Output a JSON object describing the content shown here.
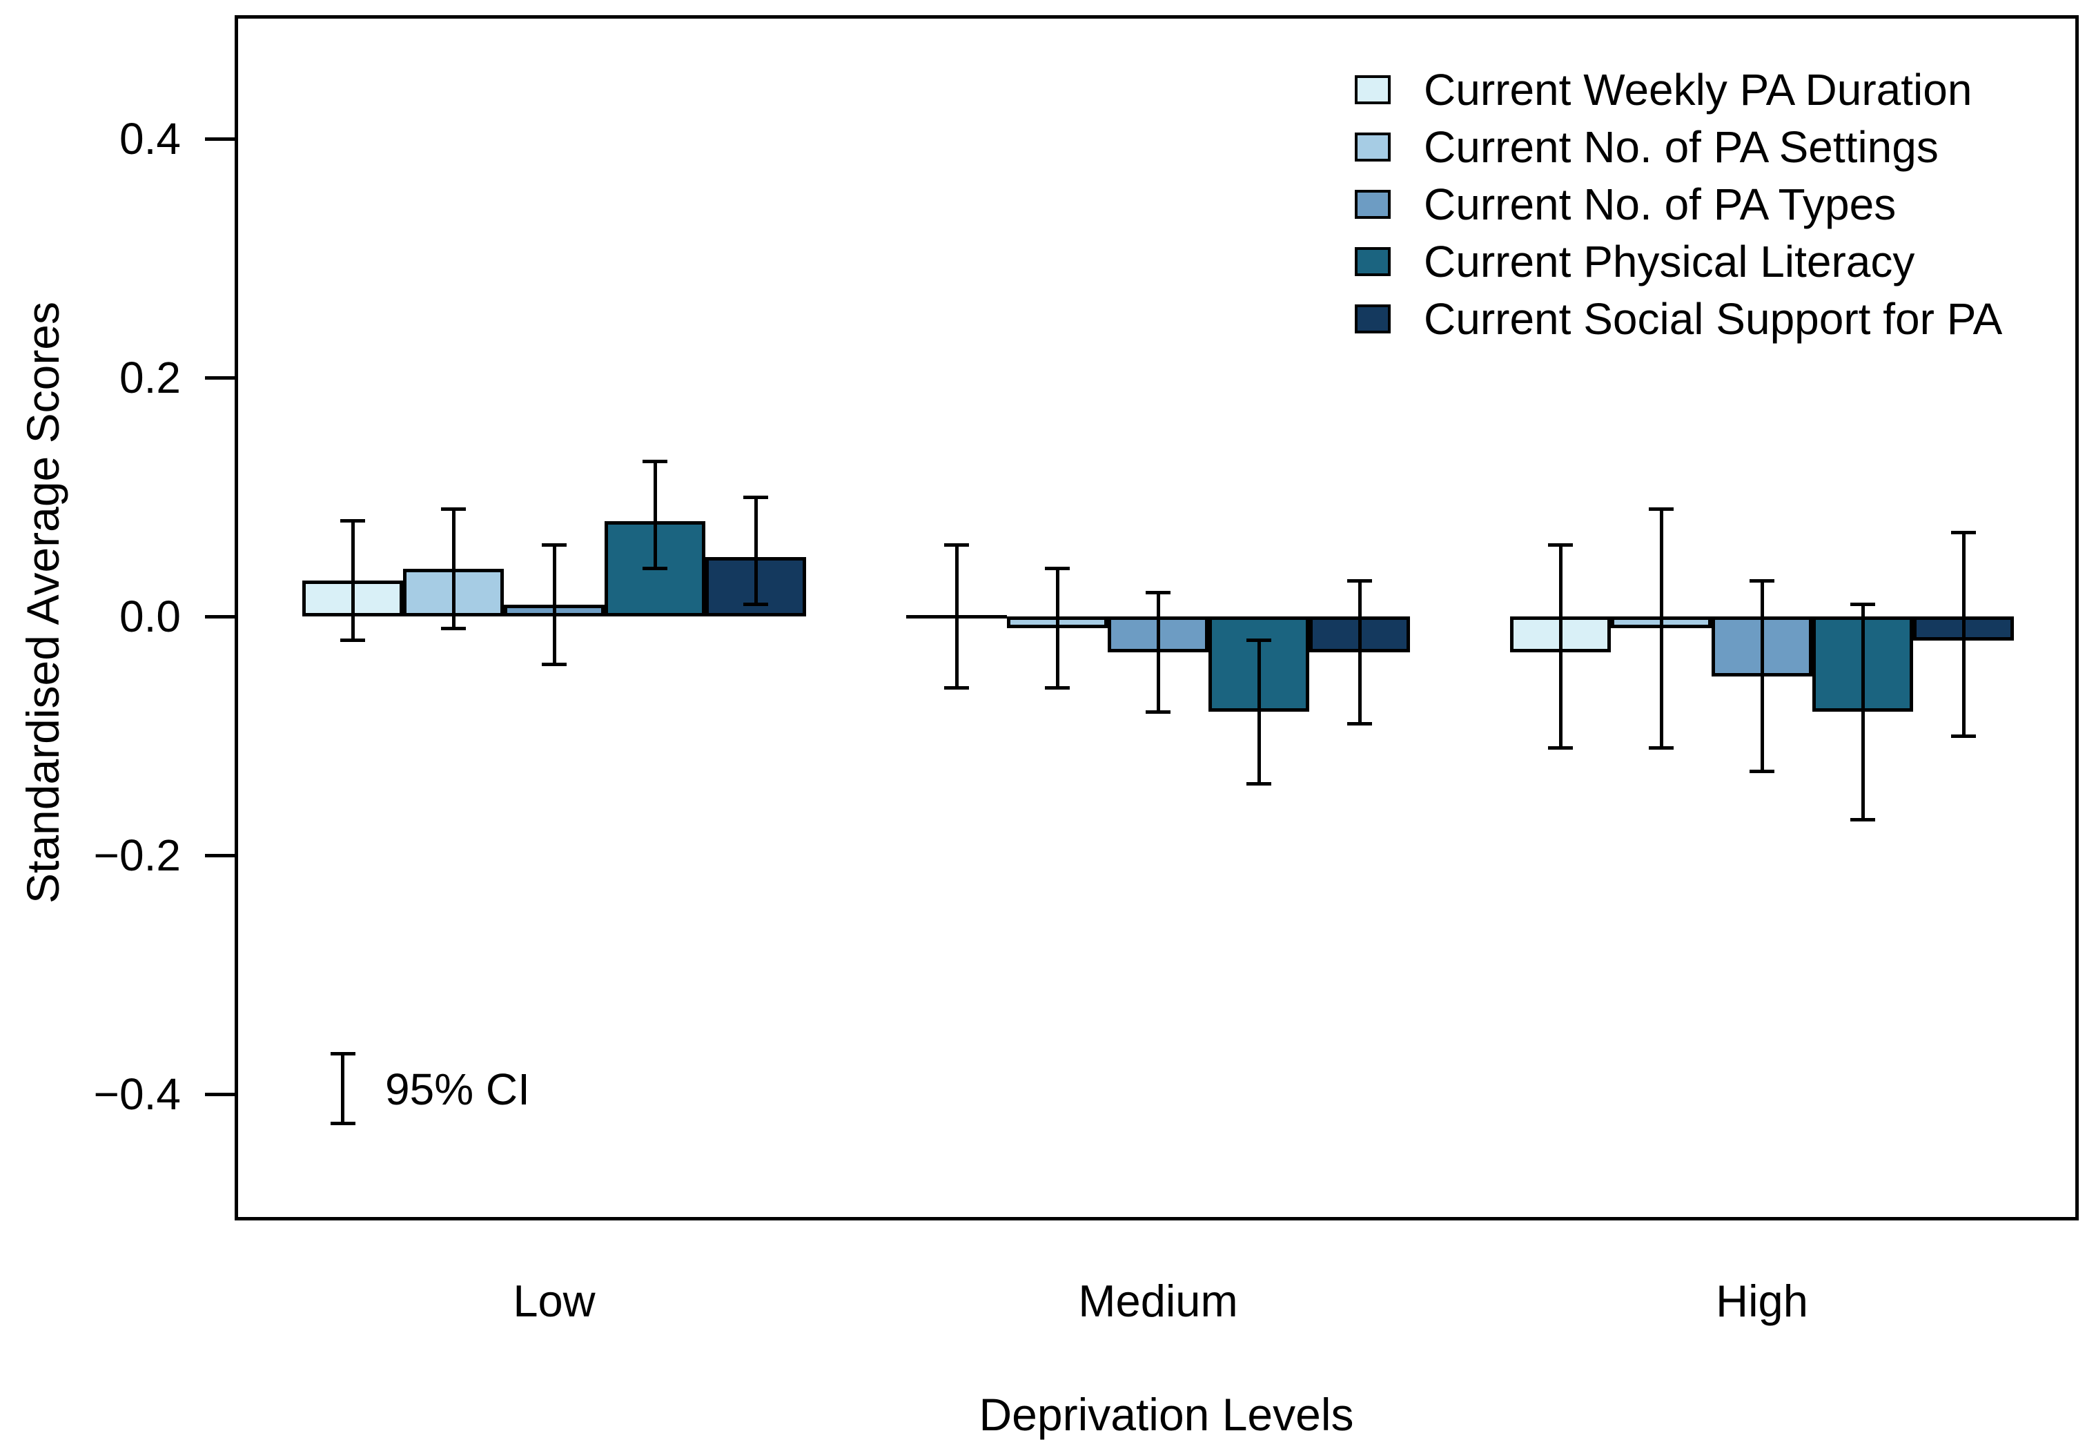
{
  "chart_data": {
    "type": "bar",
    "title": "",
    "xlabel": "Deprivation Levels",
    "ylabel": "Standardised Average Scores",
    "categories": [
      "Low",
      "Medium",
      "High"
    ],
    "ylim": [
      -0.5,
      0.5
    ],
    "yticks": {
      "values": [
        0.4,
        0.2,
        0.0,
        -0.2,
        -0.4
      ],
      "labels": [
        "0.4",
        "0.2",
        "0.0",
        "−0.2",
        "−0.4"
      ]
    },
    "grid": false,
    "legend_position": "top-right",
    "error_bar_meaning": "95% CI",
    "series": [
      {
        "name": "Current Weekly PA Duration",
        "color": "#d9f0f7",
        "values": [
          0.03,
          0.0,
          -0.03
        ],
        "ci_low": [
          -0.02,
          -0.06,
          -0.11
        ],
        "ci_high": [
          0.08,
          0.06,
          0.06
        ]
      },
      {
        "name": "Current No. of PA Settings",
        "color": "#a6cce4",
        "values": [
          0.04,
          -0.01,
          -0.01
        ],
        "ci_low": [
          -0.01,
          -0.06,
          -0.11
        ],
        "ci_high": [
          0.09,
          0.04,
          0.09
        ]
      },
      {
        "name": "Current No. of PA Types",
        "color": "#6d9cc3",
        "values": [
          0.01,
          -0.03,
          -0.05
        ],
        "ci_low": [
          -0.04,
          -0.08,
          -0.13
        ],
        "ci_high": [
          0.06,
          0.02,
          0.03
        ]
      },
      {
        "name": "Current Physical Literacy",
        "color": "#1b6480",
        "values": [
          0.08,
          -0.08,
          -0.08
        ],
        "ci_low": [
          0.04,
          -0.14,
          -0.17
        ],
        "ci_high": [
          0.13,
          -0.02,
          0.01
        ]
      },
      {
        "name": "Current Social Support for PA",
        "color": "#14395e",
        "values": [
          0.05,
          -0.03,
          -0.02
        ],
        "ci_low": [
          0.01,
          -0.09,
          -0.1
        ],
        "ci_high": [
          0.1,
          0.03,
          0.07
        ]
      }
    ],
    "annotation": {
      "label": "95% CI"
    }
  }
}
